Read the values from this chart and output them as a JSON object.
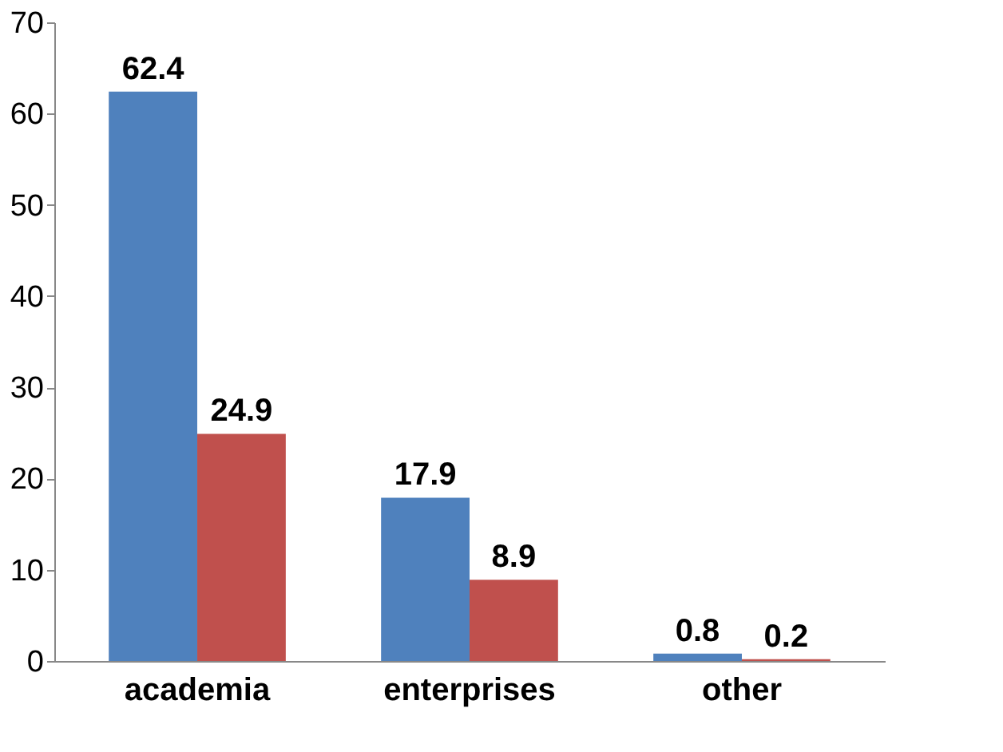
{
  "chart_data": {
    "type": "bar",
    "categories": [
      "academia",
      "enterprises",
      "other"
    ],
    "series": [
      {
        "color": "#4f81bd",
        "values": [
          62.4,
          17.9,
          0.8
        ]
      },
      {
        "color": "#c0504d",
        "values": [
          24.9,
          8.9,
          0.2
        ]
      }
    ],
    "ylim": [
      0,
      70
    ],
    "yticks": [
      0,
      10,
      20,
      30,
      40,
      50,
      60,
      70
    ],
    "grid": false,
    "legend": false,
    "data_labels": true
  }
}
